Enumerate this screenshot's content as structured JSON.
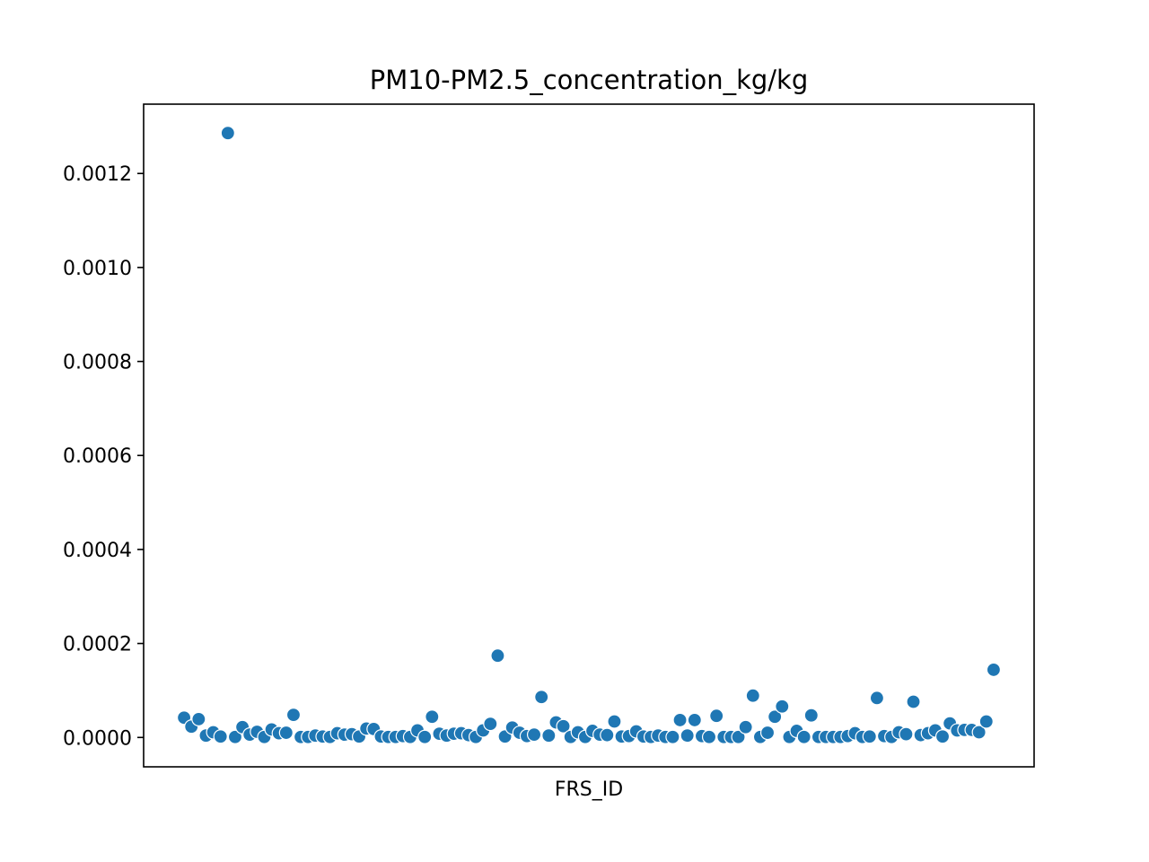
{
  "chart_data": {
    "type": "scatter",
    "title": "PM10-PM2.5_concentration_kg/kg",
    "xlabel": "FRS_ID",
    "ylabel": "",
    "ylim": [
      -6.25e-05,
      0.0013475
    ],
    "yticks": [
      0.0,
      0.0002,
      0.0004,
      0.0006,
      0.0008,
      0.001,
      0.0012
    ],
    "ytick_labels": [
      "0.0000",
      "0.0002",
      "0.0004",
      "0.0006",
      "0.0008",
      "0.0010",
      "0.0012"
    ],
    "xticks_shown": false,
    "grid": false,
    "marker_color": "#1f77b4",
    "series": [
      {
        "values": [
          4.2e-05,
          2.3e-05,
          3.9e-05,
          4e-06,
          1.1e-05,
          2e-06,
          0.001286,
          1e-06,
          2.2e-05,
          6e-06,
          1.2e-05,
          1e-06,
          1.7e-05,
          9e-06,
          1e-05,
          4.8e-05,
          1e-06,
          1e-06,
          4e-06,
          2e-06,
          1e-06,
          9e-06,
          6e-06,
          7e-06,
          2e-06,
          1.9e-05,
          1.8e-05,
          2e-06,
          1e-06,
          1e-06,
          3e-06,
          1e-06,
          1.5e-05,
          1e-06,
          4.4e-05,
          8e-06,
          4e-06,
          8e-06,
          9e-06,
          5e-06,
          1e-06,
          1.5e-05,
          2.9e-05,
          0.000174,
          2e-06,
          2.1e-05,
          1e-05,
          3e-06,
          6e-06,
          8.6e-05,
          4e-06,
          3.2e-05,
          2.4e-05,
          1e-06,
          1.1e-05,
          1e-06,
          1.4e-05,
          6e-06,
          5e-06,
          3.4e-05,
          2e-06,
          3e-06,
          1.3e-05,
          2e-06,
          1e-06,
          4e-06,
          1e-06,
          1e-06,
          3.7e-05,
          4e-06,
          3.7e-05,
          3e-06,
          1e-06,
          4.6e-05,
          1e-06,
          1e-06,
          1e-06,
          2.2e-05,
          8.9e-05,
          1e-06,
          1e-05,
          4.4e-05,
          6.6e-05,
          1e-06,
          1.4e-05,
          1e-06,
          4.7e-05,
          1e-06,
          1e-06,
          1e-06,
          1e-06,
          3e-06,
          9e-06,
          1e-06,
          2e-06,
          8.4e-05,
          3e-06,
          1e-06,
          1.1e-05,
          7e-06,
          7.6e-05,
          5e-06,
          9e-06,
          1.5e-05,
          2e-06,
          3e-05,
          1.5e-05,
          1.6e-05,
          1.6e-05,
          1.1e-05,
          3.4e-05,
          0.000144
        ]
      }
    ]
  }
}
